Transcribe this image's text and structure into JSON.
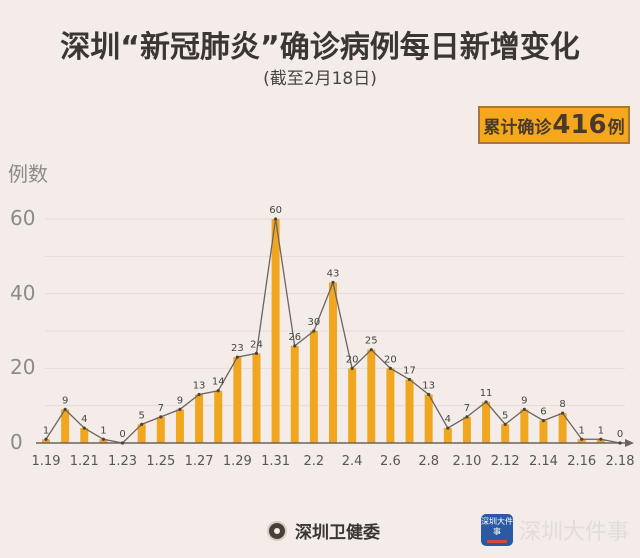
{
  "header": {
    "title": "深圳“新冠肺炎”确诊病例每日新增变化",
    "subtitle": "(截至2月18日)"
  },
  "total_badge": {
    "prefix": "累计确诊",
    "value": "416",
    "suffix": "例"
  },
  "footer": {
    "left_source": "深圳卫健委",
    "right_brand": "深圳大件事",
    "app_icon_text": "深圳大件事"
  },
  "colors": {
    "bar": "#f0a71f",
    "line": "#6b6461",
    "badge_bg": "#f5a81d",
    "background": "#f3ece8"
  },
  "chart_data": {
    "type": "bar",
    "title": "深圳“新冠肺炎”确诊病例每日新增变化",
    "subtitle": "(截至2月18日)",
    "xlabel": "",
    "ylabel": "例数",
    "ylim": [
      0,
      60
    ],
    "yticks": [
      0,
      20,
      40,
      60
    ],
    "grid": true,
    "overlay_line": true,
    "categories": [
      "1.19",
      "1.20",
      "1.21",
      "1.22",
      "1.23",
      "1.24",
      "1.25",
      "1.26",
      "1.27",
      "1.28",
      "1.29",
      "1.30",
      "1.31",
      "2.1",
      "2.2",
      "2.3",
      "2.4",
      "2.5",
      "2.6",
      "2.7",
      "2.8",
      "2.9",
      "2.10",
      "2.11",
      "2.12",
      "2.13",
      "2.14",
      "2.15",
      "2.16",
      "2.17",
      "2.18"
    ],
    "xtick_labels": [
      "1.19",
      "1.21",
      "1.23",
      "1.25",
      "1.27",
      "1.29",
      "1.31",
      "2.2",
      "2.4",
      "2.6",
      "2.8",
      "2.10",
      "2.12",
      "2.14",
      "2.16",
      "2.18"
    ],
    "values": [
      1,
      9,
      4,
      1,
      0,
      5,
      7,
      9,
      13,
      14,
      23,
      24,
      60,
      26,
      30,
      43,
      20,
      25,
      20,
      17,
      13,
      4,
      7,
      11,
      5,
      9,
      6,
      8,
      1,
      1,
      0
    ],
    "annotation": "累计确诊416例"
  }
}
